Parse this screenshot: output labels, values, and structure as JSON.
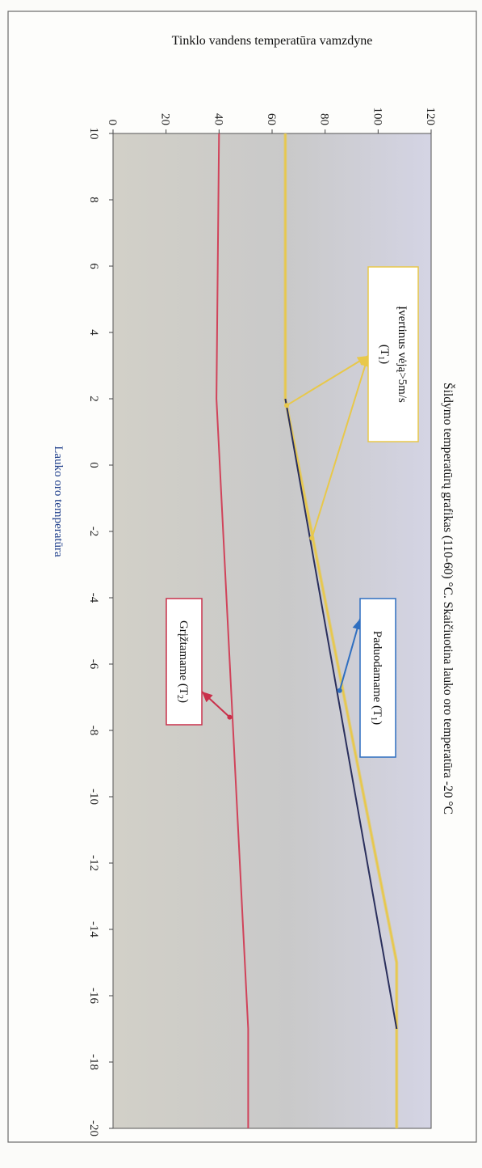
{
  "chart_data": {
    "type": "line",
    "title": "Šildymo temperatūrų grafikas (110-60) °C. Skaičiuotina lauko oro temperatūra -20 °C",
    "xlabel": "Lauko oro temperatūra",
    "ylabel": "Tinklo vandens temperatūra vamzdyne",
    "xlim": [
      10,
      -20
    ],
    "ylim": [
      0,
      120
    ],
    "x_ticks": [
      "10",
      "8",
      "6",
      "4",
      "2",
      "0",
      "-2",
      "-4",
      "-6",
      "-8",
      "-10",
      "-12",
      "-14",
      "-16",
      "-18",
      "-20"
    ],
    "y_ticks": [
      "0",
      "20",
      "40",
      "60",
      "80",
      "100",
      "120"
    ],
    "grid": false,
    "series": [
      {
        "id": "wind",
        "color": "#e8c84a",
        "points": [
          [
            10,
            65
          ],
          [
            2,
            65
          ],
          [
            -15,
            107
          ],
          [
            -20,
            107
          ]
        ]
      },
      {
        "id": "supply",
        "color": "#2a2f5c",
        "points": [
          [
            2,
            65
          ],
          [
            -17,
            107
          ]
        ]
      },
      {
        "id": "return",
        "color": "#d0435a",
        "points": [
          [
            10,
            40
          ],
          [
            2,
            39
          ],
          [
            -17,
            51
          ],
          [
            -20,
            51
          ]
        ]
      }
    ],
    "annotations": [
      {
        "id": "wind",
        "label_main": "Įvertinus vėją>5m/s",
        "label_sub": "(T",
        "label_subscript": "1",
        "label_end": ")",
        "color": "#e8c84a",
        "targets": [
          [
            1.8,
            65.5
          ],
          [
            -2.2,
            75
          ]
        ]
      },
      {
        "id": "supply",
        "label_main": "Paduodamame (T",
        "label_subscript": "1",
        "label_end": ")",
        "color": "#2f6fc0",
        "targets": [
          [
            -6.8,
            85.5
          ]
        ]
      },
      {
        "id": "return",
        "label_main": "Grįžtamame (T",
        "label_subscript": "2",
        "label_end": ")",
        "color": "#c9304a",
        "targets": [
          [
            -7.6,
            44
          ]
        ]
      }
    ]
  }
}
